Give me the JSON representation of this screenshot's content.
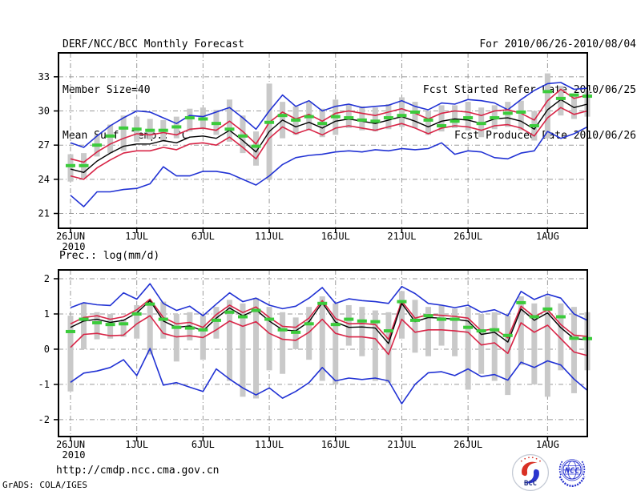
{
  "header": {
    "title": "DERF/NCC/BCC Monthly Forecast",
    "member_size": "Member Size=40",
    "period": "For 2010/06/26-2010/08/04",
    "refer_date": "Fcst Started Refer Date 2010/06/25",
    "produced_date": "Fcst Produced Date 2010/06/26"
  },
  "footer": {
    "url": "http://cmdp.ncc.cma.gov.cn",
    "credit": "GrADS: COLA/IGES",
    "bcc_logo_text": "BCC",
    "ncc_logo_text": "NCC"
  },
  "colors": {
    "blue": "#2132d4",
    "red": "#d82446",
    "green": "#3bcb3b",
    "black": "#000000",
    "bar": "#c9c9c9",
    "grid": "#9a9a9a",
    "frame": "#000000",
    "logo_blue": "#2b35cf",
    "logo_red": "#d93025",
    "logo_navy": "#1b2a80"
  },
  "chart_data": [
    {
      "type": "line",
      "title": "Mean Surf. Temp.: °C",
      "ylabel": "°C",
      "n_days": 40,
      "x_tick_days": [
        0,
        5,
        10,
        15,
        20,
        25,
        30,
        36
      ],
      "x_tick_labels": [
        "26JUN",
        "1JUL",
        "6JUL",
        "11JUL",
        "16JUL",
        "21JUL",
        "26JUL",
        "1AUG"
      ],
      "x_sub_label": "2010",
      "yticks": [
        21,
        24,
        27,
        30,
        33
      ],
      "ylim": [
        19.7,
        35.1
      ],
      "grid": true,
      "series": [
        {
          "name": "ensemble-max-line",
          "color": "blue",
          "values": [
            27.2,
            26.8,
            27.8,
            28.7,
            29.4,
            30.0,
            29.9,
            29.4,
            28.9,
            29.6,
            29.5,
            29.9,
            30.3,
            29.4,
            28.4,
            30.0,
            31.4,
            30.4,
            30.9,
            30.0,
            30.4,
            30.6,
            30.3,
            30.4,
            30.5,
            30.9,
            30.4,
            30.1,
            30.7,
            30.6,
            31.0,
            30.9,
            30.7,
            30.1,
            31.0,
            31.8,
            32.4,
            32.5,
            31.9,
            32.0
          ]
        },
        {
          "name": "upper-spread-line",
          "color": "red",
          "values": [
            25.8,
            25.5,
            26.4,
            27.1,
            27.6,
            28.0,
            27.9,
            28.1,
            27.9,
            28.4,
            28.5,
            28.3,
            29.1,
            28.2,
            27.1,
            29.0,
            29.9,
            29.3,
            29.7,
            29.1,
            29.8,
            30.0,
            29.8,
            29.6,
            29.9,
            30.2,
            29.8,
            29.3,
            29.8,
            30.0,
            29.9,
            29.6,
            30.0,
            30.1,
            29.8,
            29.2,
            30.9,
            31.9,
            31.1,
            31.4
          ]
        },
        {
          "name": "ensemble-mean-line",
          "color": "black",
          "values": [
            24.9,
            24.6,
            25.6,
            26.3,
            26.9,
            27.1,
            27.1,
            27.4,
            27.2,
            27.7,
            27.8,
            27.6,
            28.3,
            27.4,
            26.4,
            28.2,
            29.2,
            28.6,
            29.0,
            28.5,
            29.1,
            29.3,
            29.1,
            28.9,
            29.2,
            29.5,
            29.1,
            28.6,
            29.1,
            29.3,
            29.2,
            28.9,
            29.3,
            29.4,
            29.1,
            28.4,
            30.1,
            31.0,
            30.3,
            30.6
          ]
        },
        {
          "name": "lower-spread-line",
          "color": "red",
          "values": [
            24.3,
            24.0,
            25.0,
            25.7,
            26.3,
            26.5,
            26.5,
            26.8,
            26.6,
            27.1,
            27.2,
            27.0,
            27.7,
            26.8,
            25.8,
            27.6,
            28.6,
            28.0,
            28.4,
            27.9,
            28.5,
            28.7,
            28.5,
            28.3,
            28.6,
            28.9,
            28.5,
            28.0,
            28.5,
            28.7,
            28.6,
            28.3,
            28.7,
            28.8,
            28.5,
            27.8,
            29.4,
            30.3,
            29.7,
            30.0
          ]
        },
        {
          "name": "ensemble-min-line",
          "color": "blue",
          "values": [
            22.6,
            21.6,
            22.9,
            22.9,
            23.1,
            23.2,
            23.6,
            25.1,
            24.3,
            24.3,
            24.7,
            24.7,
            24.5,
            24.0,
            23.5,
            24.3,
            25.3,
            25.9,
            26.1,
            26.2,
            26.4,
            26.5,
            26.4,
            26.6,
            26.5,
            26.7,
            26.6,
            26.7,
            27.2,
            26.2,
            26.5,
            26.4,
            25.9,
            25.8,
            26.3,
            26.5,
            28.2,
            27.6,
            28.0,
            28.6
          ]
        }
      ],
      "green_dash_values": [
        25.2,
        25.2,
        27.0,
        27.8,
        28.5,
        28.4,
        28.3,
        28.3,
        28.6,
        29.4,
        29.3,
        28.9,
        28.4,
        27.8,
        26.9,
        29.0,
        29.6,
        29.2,
        29.5,
        28.9,
        29.5,
        29.4,
        29.2,
        29.1,
        29.4,
        29.6,
        29.9,
        29.2,
        28.7,
        29.1,
        29.4,
        28.9,
        29.4,
        29.8,
        29.9,
        28.7,
        31.7,
        31.1,
        31.4,
        31.3
      ],
      "bar_lo": [
        23.8,
        24.1,
        26.0,
        26.3,
        26.5,
        27.3,
        27.5,
        27.3,
        27.6,
        28.2,
        28.4,
        27.9,
        27.3,
        26.3,
        25.2,
        24.0,
        27.6,
        27.9,
        28.3,
        27.7,
        27.9,
        28.5,
        28.3,
        28.2,
        28.4,
        28.6,
        28.5,
        27.9,
        28.2,
        28.5,
        28.3,
        27.7,
        28.4,
        28.6,
        28.3,
        27.4,
        27.6,
        29.6,
        29.3,
        29.5
      ],
      "bar_hi": [
        26.2,
        26.3,
        27.9,
        28.8,
        29.6,
        29.5,
        29.3,
        29.2,
        29.5,
        30.2,
        30.3,
        30.1,
        31.0,
        29.6,
        28.2,
        32.4,
        30.8,
        30.4,
        30.8,
        30.2,
        31.0,
        30.6,
        30.4,
        30.3,
        30.6,
        31.2,
        30.8,
        30.0,
        30.5,
        30.5,
        30.8,
        30.3,
        30.5,
        30.8,
        30.9,
        30.0,
        33.3,
        32.2,
        31.5,
        31.8
      ]
    },
    {
      "type": "line",
      "title": "Prec.: log(mm/d)",
      "ylabel": "log(mm/d)",
      "n_days": 40,
      "x_tick_days": [
        0,
        5,
        10,
        15,
        20,
        25,
        30,
        36
      ],
      "x_tick_labels": [
        "26JUN",
        "1JUL",
        "6JUL",
        "11JUL",
        "16JUL",
        "21JUL",
        "26JUL",
        "1AUG"
      ],
      "x_sub_label": "2010",
      "yticks": [
        -2,
        -1,
        0,
        1,
        2
      ],
      "ylim": [
        -2.48,
        2.25
      ],
      "grid": true,
      "series": [
        {
          "name": "ensemble-max-line",
          "color": "blue",
          "values": [
            1.18,
            1.32,
            1.26,
            1.24,
            1.6,
            1.42,
            1.86,
            1.3,
            1.1,
            1.22,
            0.95,
            1.28,
            1.6,
            1.35,
            1.45,
            1.25,
            1.15,
            1.22,
            1.45,
            1.75,
            1.3,
            1.43,
            1.38,
            1.35,
            1.3,
            1.78,
            1.58,
            1.3,
            1.25,
            1.18,
            1.25,
            1.05,
            1.12,
            0.95,
            1.64,
            1.41,
            1.56,
            1.45,
            1.0,
            0.82
          ]
        },
        {
          "name": "upper-spread-line",
          "color": "red",
          "values": [
            0.72,
            0.9,
            0.95,
            0.85,
            0.92,
            1.12,
            1.42,
            0.9,
            0.72,
            0.76,
            0.62,
            0.98,
            1.25,
            1.04,
            1.2,
            0.9,
            0.65,
            0.62,
            0.88,
            1.38,
            0.87,
            0.72,
            0.73,
            0.7,
            0.28,
            1.36,
            0.88,
            0.98,
            0.96,
            0.93,
            0.88,
            0.52,
            0.58,
            0.32,
            1.22,
            0.92,
            1.12,
            0.7,
            0.4,
            0.36
          ]
        },
        {
          "name": "ensemble-mean-line",
          "color": "black",
          "values": [
            0.62,
            0.8,
            0.85,
            0.76,
            0.82,
            1.03,
            1.38,
            0.8,
            0.62,
            0.66,
            0.52,
            0.88,
            1.17,
            0.95,
            1.12,
            0.8,
            0.55,
            0.52,
            0.78,
            1.32,
            0.77,
            0.62,
            0.63,
            0.6,
            0.16,
            1.3,
            0.78,
            0.9,
            0.88,
            0.85,
            0.8,
            0.42,
            0.48,
            0.2,
            1.14,
            0.82,
            1.03,
            0.61,
            0.3,
            0.27
          ]
        },
        {
          "name": "lower-spread-line",
          "color": "red",
          "values": [
            0.05,
            0.42,
            0.45,
            0.38,
            0.4,
            0.72,
            0.95,
            0.45,
            0.35,
            0.38,
            0.33,
            0.55,
            0.8,
            0.65,
            0.78,
            0.45,
            0.28,
            0.25,
            0.48,
            0.85,
            0.45,
            0.35,
            0.35,
            0.3,
            -0.15,
            0.85,
            0.48,
            0.55,
            0.55,
            0.52,
            0.48,
            0.12,
            0.18,
            -0.12,
            0.75,
            0.48,
            0.68,
            0.3,
            -0.08,
            -0.18
          ]
        },
        {
          "name": "ensemble-min-line",
          "color": "blue",
          "values": [
            -0.94,
            -0.68,
            -0.62,
            -0.52,
            -0.3,
            -0.75,
            0.02,
            -1.02,
            -0.95,
            -1.08,
            -1.2,
            -0.56,
            -0.85,
            -1.1,
            -1.3,
            -1.1,
            -1.39,
            -1.2,
            -0.95,
            -0.52,
            -0.9,
            -0.82,
            -0.86,
            -0.82,
            -0.9,
            -1.55,
            -1.0,
            -0.67,
            -0.64,
            -0.75,
            -0.56,
            -0.78,
            -0.72,
            -0.88,
            -0.37,
            -0.52,
            -0.33,
            -0.45,
            -0.85,
            -1.17
          ]
        }
      ],
      "green_dash_values": [
        0.5,
        0.85,
        0.75,
        0.7,
        0.72,
        1.0,
        1.28,
        0.85,
        0.62,
        0.6,
        0.55,
        0.82,
        1.05,
        0.92,
        1.1,
        0.85,
        0.55,
        0.48,
        0.72,
        1.3,
        0.7,
        0.85,
        0.8,
        0.78,
        0.52,
        1.35,
        0.82,
        0.95,
        0.85,
        0.85,
        0.62,
        0.52,
        0.55,
        0.39,
        1.32,
        0.92,
        1.14,
        0.92,
        0.31,
        0.3
      ],
      "bar_lo": [
        -1.2,
        0.0,
        0.28,
        0.3,
        0.35,
        0.3,
        -0.15,
        0.3,
        -0.35,
        0.25,
        -0.3,
        0.3,
        -0.9,
        -1.35,
        -1.4,
        -0.6,
        -0.7,
        0.0,
        -0.3,
        -0.9,
        -1.0,
        0.1,
        -0.2,
        -0.9,
        -0.95,
        0.3,
        -0.1,
        -0.2,
        0.1,
        -0.2,
        -1.15,
        -0.7,
        -0.9,
        -1.3,
        -0.45,
        -1.0,
        -1.35,
        -0.6,
        -1.25,
        -0.6
      ],
      "bar_hi": [
        0.95,
        1.3,
        1.05,
        1.0,
        0.85,
        1.25,
        1.35,
        1.35,
        1.0,
        1.05,
        0.95,
        1.2,
        1.4,
        1.3,
        1.45,
        1.2,
        1.05,
        0.9,
        1.2,
        1.5,
        1.3,
        1.25,
        1.2,
        1.1,
        1.05,
        1.65,
        1.4,
        1.2,
        1.25,
        1.15,
        1.2,
        1.0,
        1.05,
        0.95,
        1.5,
        1.3,
        1.5,
        1.3,
        1.2,
        1.05
      ]
    }
  ]
}
